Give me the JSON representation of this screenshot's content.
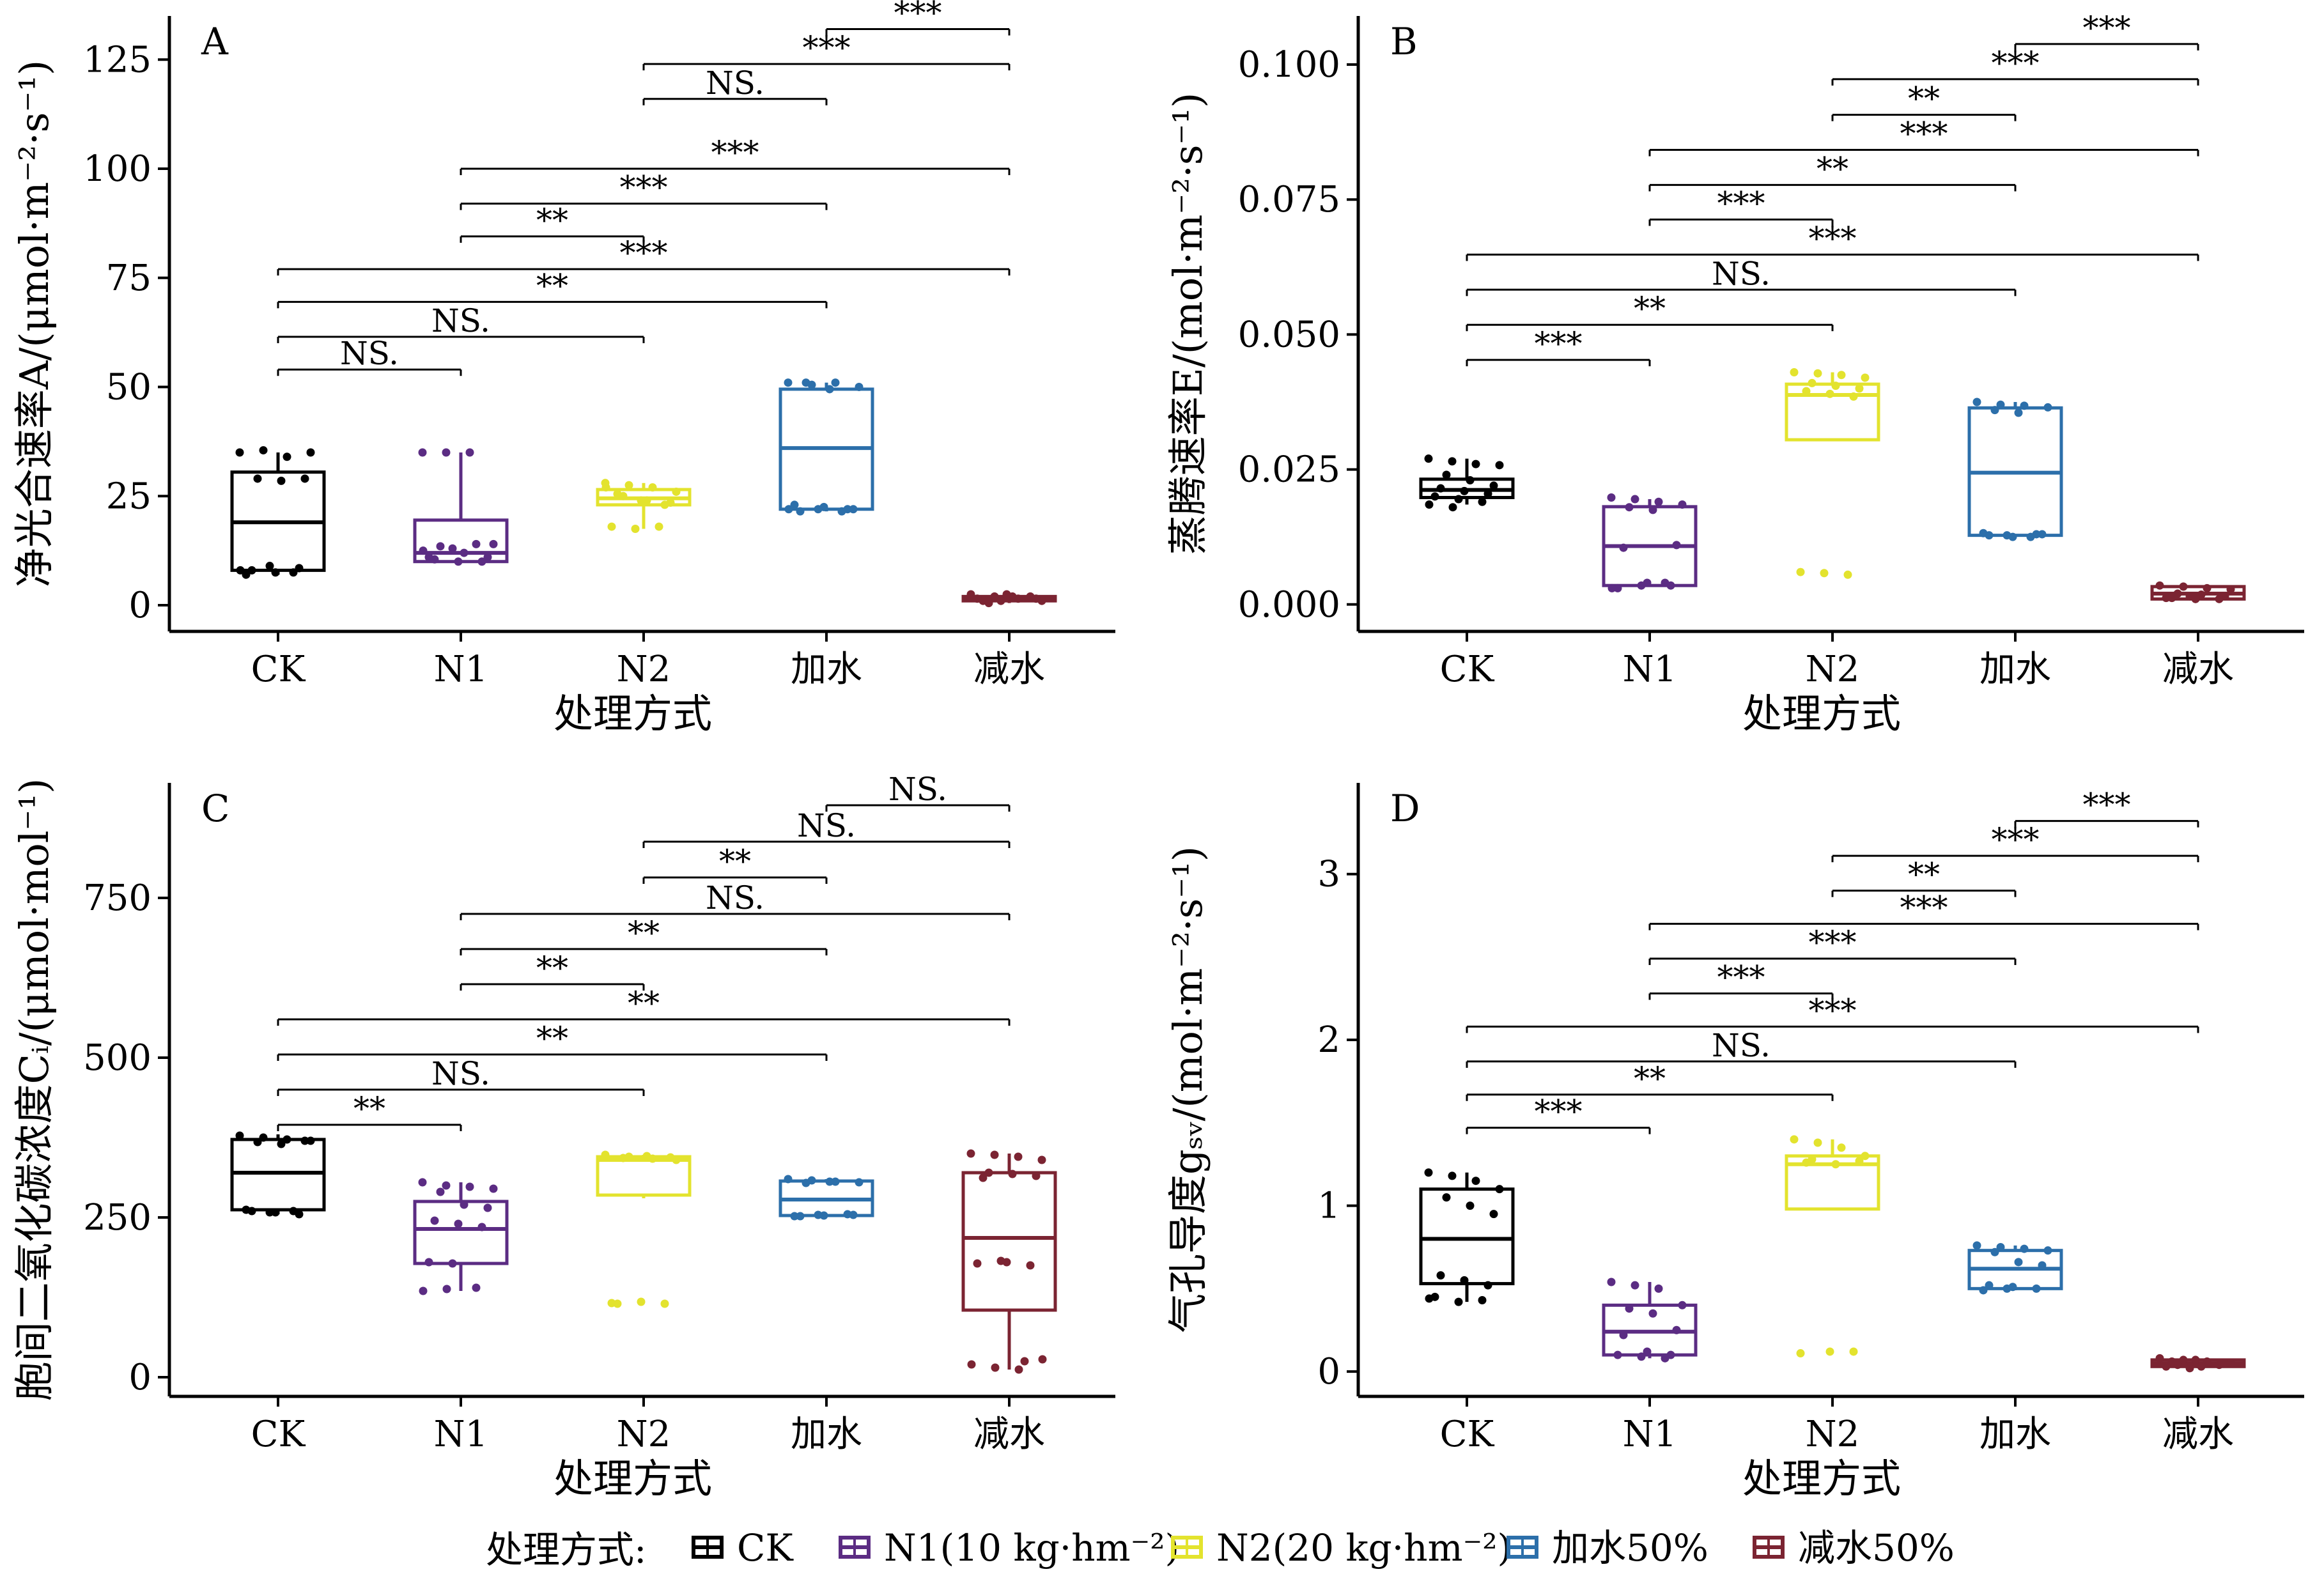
{
  "figure": {
    "legend": {
      "title": "处理方式:",
      "items": [
        {
          "label": "CK",
          "color": "#000000"
        },
        {
          "label": "N1(10 kg·hm⁻²)",
          "color": "#5B2C83"
        },
        {
          "label": "N2(20 kg·hm⁻²)",
          "color": "#E3E32E"
        },
        {
          "label": "加水50%",
          "color": "#2C6FAA"
        },
        {
          "label": "减水50%",
          "color": "#7B2432"
        }
      ]
    }
  },
  "chart_data": [
    {
      "type": "box",
      "panel": "A",
      "ylabel": "净光合速率A/(μmol·m⁻²·s⁻¹)",
      "xlabel": "处理方式",
      "categories": [
        "CK",
        "N1",
        "N2",
        "加水",
        "减水"
      ],
      "ylim": [
        -6,
        135
      ],
      "yticks": [
        0,
        25,
        50,
        75,
        100,
        125
      ],
      "boxes": [
        {
          "q1": 8,
          "median": 19,
          "q3": 30.5,
          "whislo": 7,
          "whishi": 35,
          "points": [
            35,
            35.5,
            34,
            35,
            29,
            28.5,
            29,
            8,
            7.5,
            8.5,
            7,
            9,
            7.5,
            8
          ]
        },
        {
          "q1": 10,
          "median": 12,
          "q3": 19.5,
          "whislo": 10,
          "whishi": 35,
          "points": [
            35,
            35,
            35,
            14,
            13.5,
            12,
            11,
            10.5,
            10,
            10,
            11,
            13,
            14,
            12.5
          ]
        },
        {
          "q1": 23,
          "median": 24.5,
          "q3": 26.5,
          "whislo": 17.5,
          "whishi": 28,
          "points": [
            28,
            27.5,
            27,
            26,
            25,
            24,
            23.5,
            25.5,
            24,
            23,
            18,
            17.5,
            18,
            27
          ]
        },
        {
          "q1": 22,
          "median": 36,
          "q3": 49.5,
          "whislo": 21.5,
          "whishi": 51,
          "points": [
            51,
            50.5,
            51,
            50,
            51,
            49.5,
            22,
            21.5,
            22.5,
            22,
            23,
            22,
            21.5,
            22
          ]
        },
        {
          "q1": 1,
          "median": 1.5,
          "q3": 2,
          "whislo": 0.5,
          "whishi": 2.5,
          "points": [
            2.5,
            2,
            1.5,
            1,
            0.5,
            2,
            1.5,
            1,
            2.5,
            2,
            1.5,
            1
          ]
        }
      ],
      "significance": [
        {
          "from": 3,
          "to": 4,
          "label": "***",
          "level": 132
        },
        {
          "from": 2,
          "to": 4,
          "label": "***",
          "level": 124
        },
        {
          "from": 2,
          "to": 3,
          "label": "NS.",
          "level": 116
        },
        {
          "from": 1,
          "to": 4,
          "label": "***",
          "level": 100
        },
        {
          "from": 1,
          "to": 3,
          "label": "***",
          "level": 92
        },
        {
          "from": 1,
          "to": 2,
          "label": "**",
          "level": 84.5
        },
        {
          "from": 0,
          "to": 4,
          "label": "***",
          "level": 77
        },
        {
          "from": 0,
          "to": 3,
          "label": "**",
          "level": 69.5
        },
        {
          "from": 0,
          "to": 2,
          "label": "NS.",
          "level": 61.5
        },
        {
          "from": 0,
          "to": 1,
          "label": "NS.",
          "level": 54
        }
      ]
    },
    {
      "type": "box",
      "panel": "B",
      "ylabel": "蒸腾速率E/(mol·m⁻²·s⁻¹)",
      "xlabel": "处理方式",
      "categories": [
        "CK",
        "N1",
        "N2",
        "加水",
        "减水"
      ],
      "ylim": [
        -0.005,
        0.109
      ],
      "yticks": [
        0,
        0.025,
        0.05,
        0.075,
        0.1
      ],
      "yticklabels": [
        "0.000",
        "0.025",
        "0.050",
        "0.075",
        "0.100"
      ],
      "boxes": [
        {
          "q1": 0.0198,
          "median": 0.0212,
          "q3": 0.0232,
          "whislo": 0.0185,
          "whishi": 0.027,
          "points": [
            0.027,
            0.0265,
            0.026,
            0.0258,
            0.024,
            0.023,
            0.022,
            0.0215,
            0.021,
            0.0205,
            0.02,
            0.0195,
            0.019,
            0.0185,
            0.018
          ]
        },
        {
          "q1": 0.0035,
          "median": 0.0108,
          "q3": 0.0181,
          "whislo": 0.0035,
          "whishi": 0.0195,
          "points": [
            0.0198,
            0.0195,
            0.019,
            0.0185,
            0.018,
            0.0175,
            0.011,
            0.0105,
            0.004,
            0.0035,
            0.003,
            0.0035,
            0.004,
            0.003
          ]
        },
        {
          "q1": 0.0305,
          "median": 0.0388,
          "q3": 0.0408,
          "whislo": 0.0305,
          "whishi": 0.043,
          "points": [
            0.043,
            0.0428,
            0.0425,
            0.042,
            0.041,
            0.0405,
            0.04,
            0.0395,
            0.039,
            0.0385,
            0.006,
            0.0058,
            0.0055
          ]
        },
        {
          "q1": 0.0128,
          "median": 0.0244,
          "q3": 0.0364,
          "whislo": 0.0128,
          "whishi": 0.0375,
          "points": [
            0.0375,
            0.037,
            0.0368,
            0.0365,
            0.036,
            0.0355,
            0.013,
            0.0128,
            0.0125,
            0.013,
            0.0132,
            0.0128,
            0.0125
          ]
        },
        {
          "q1": 0.001,
          "median": 0.002,
          "q3": 0.0033,
          "whislo": 0.001,
          "whishi": 0.0035,
          "points": [
            0.0035,
            0.0033,
            0.003,
            0.0028,
            0.002,
            0.0018,
            0.0015,
            0.0012,
            0.001,
            0.001,
            0.0012,
            0.0015
          ]
        }
      ],
      "significance": [
        {
          "from": 3,
          "to": 4,
          "label": "***",
          "level": 0.1038
        },
        {
          "from": 2,
          "to": 4,
          "label": "***",
          "level": 0.0973
        },
        {
          "from": 2,
          "to": 3,
          "label": "**",
          "level": 0.0907
        },
        {
          "from": 1,
          "to": 4,
          "label": "***",
          "level": 0.0842
        },
        {
          "from": 1,
          "to": 3,
          "label": "**",
          "level": 0.0777
        },
        {
          "from": 1,
          "to": 2,
          "label": "***",
          "level": 0.0713
        },
        {
          "from": 0,
          "to": 4,
          "label": "***",
          "level": 0.0648
        },
        {
          "from": 0,
          "to": 3,
          "label": "NS.",
          "level": 0.0583
        },
        {
          "from": 0,
          "to": 2,
          "label": "**",
          "level": 0.0518
        },
        {
          "from": 0,
          "to": 1,
          "label": "***",
          "level": 0.0453
        }
      ]
    },
    {
      "type": "box",
      "panel": "C",
      "ylabel": "胞间二氧化碳浓度Cᵢ/(μmol·mol⁻¹)",
      "xlabel": "处理方式",
      "categories": [
        "CK",
        "N1",
        "N2",
        "加水",
        "减水"
      ],
      "ylim": [
        -30,
        930
      ],
      "yticks": [
        0,
        250,
        500,
        750
      ],
      "boxes": [
        {
          "q1": 262,
          "median": 320,
          "q3": 372,
          "whislo": 255,
          "whishi": 380,
          "points": [
            378,
            375,
            372,
            370,
            368,
            365,
            370,
            260,
            258,
            255,
            262,
            258,
            260
          ]
        },
        {
          "q1": 178,
          "median": 232,
          "q3": 275,
          "whislo": 135,
          "whishi": 305,
          "points": [
            305,
            300,
            298,
            295,
            290,
            270,
            265,
            245,
            240,
            235,
            180,
            178,
            140,
            135,
            138
          ]
        },
        {
          "q1": 285,
          "median": 340,
          "q3": 345,
          "whislo": 280,
          "whishi": 348,
          "points": [
            348,
            345,
            342,
            340,
            343,
            346,
            344,
            115,
            118,
            115,
            116
          ]
        },
        {
          "q1": 253,
          "median": 278,
          "q3": 307,
          "whislo": 252,
          "whishi": 310,
          "points": [
            310,
            308,
            306,
            305,
            304,
            306,
            254,
            252,
            253,
            255,
            252,
            254
          ]
        },
        {
          "q1": 105,
          "median": 218,
          "q3": 320,
          "whislo": 12,
          "whishi": 350,
          "points": [
            350,
            348,
            345,
            340,
            320,
            318,
            315,
            312,
            180,
            175,
            178,
            182,
            25,
            20,
            15,
            12,
            28
          ]
        }
      ],
      "significance": [
        {
          "from": 3,
          "to": 4,
          "label": "NS.",
          "level": 895
        },
        {
          "from": 2,
          "to": 4,
          "label": "NS.",
          "level": 838
        },
        {
          "from": 2,
          "to": 3,
          "label": "**",
          "level": 782
        },
        {
          "from": 1,
          "to": 4,
          "label": "NS.",
          "level": 725
        },
        {
          "from": 1,
          "to": 3,
          "label": "**",
          "level": 670
        },
        {
          "from": 1,
          "to": 2,
          "label": "**",
          "level": 615
        },
        {
          "from": 0,
          "to": 4,
          "label": "**",
          "level": 560
        },
        {
          "from": 0,
          "to": 3,
          "label": "**",
          "level": 505
        },
        {
          "from": 0,
          "to": 2,
          "label": "NS.",
          "level": 450
        },
        {
          "from": 0,
          "to": 1,
          "label": "**",
          "level": 395
        }
      ]
    },
    {
      "type": "box",
      "panel": "D",
      "ylabel": "气孔导度gₛᵥ/(mol·m⁻²·s⁻¹)",
      "xlabel": "处理方式",
      "categories": [
        "CK",
        "N1",
        "N2",
        "加水",
        "减水"
      ],
      "ylim": [
        -0.15,
        3.55
      ],
      "yticks": [
        0,
        1,
        2,
        3
      ],
      "boxes": [
        {
          "q1": 0.53,
          "median": 0.8,
          "q3": 1.1,
          "whislo": 0.42,
          "whishi": 1.2,
          "points": [
            1.2,
            1.18,
            1.15,
            1.1,
            1.05,
            1.0,
            0.95,
            0.58,
            0.55,
            0.52,
            0.45,
            0.42,
            0.43,
            0.44
          ]
        },
        {
          "q1": 0.1,
          "median": 0.24,
          "q3": 0.4,
          "whislo": 0.08,
          "whishi": 0.54,
          "points": [
            0.54,
            0.52,
            0.5,
            0.4,
            0.38,
            0.35,
            0.25,
            0.22,
            0.12,
            0.1,
            0.1,
            0.09,
            0.08
          ]
        },
        {
          "q1": 0.98,
          "median": 1.25,
          "q3": 1.3,
          "whislo": 0.98,
          "whishi": 1.4,
          "points": [
            1.4,
            1.38,
            1.35,
            1.3,
            1.28,
            1.25,
            1.27,
            1.26,
            0.12,
            0.12,
            0.11
          ]
        },
        {
          "q1": 0.5,
          "median": 0.62,
          "q3": 0.73,
          "whislo": 0.49,
          "whishi": 0.76,
          "points": [
            0.76,
            0.75,
            0.74,
            0.73,
            0.72,
            0.66,
            0.64,
            0.52,
            0.51,
            0.5,
            0.49,
            0.5
          ]
        },
        {
          "q1": 0.03,
          "median": 0.05,
          "q3": 0.07,
          "whislo": 0.02,
          "whishi": 0.08,
          "points": [
            0.08,
            0.07,
            0.06,
            0.05,
            0.04,
            0.03,
            0.05,
            0.06,
            0.07,
            0.04,
            0.03,
            0.02
          ]
        }
      ],
      "significance": [
        {
          "from": 3,
          "to": 4,
          "label": "***",
          "level": 3.32
        },
        {
          "from": 2,
          "to": 4,
          "label": "***",
          "level": 3.11
        },
        {
          "from": 2,
          "to": 3,
          "label": "**",
          "level": 2.9
        },
        {
          "from": 1,
          "to": 4,
          "label": "***",
          "level": 2.7
        },
        {
          "from": 1,
          "to": 3,
          "label": "***",
          "level": 2.49
        },
        {
          "from": 1,
          "to": 2,
          "label": "***",
          "level": 2.28
        },
        {
          "from": 0,
          "to": 4,
          "label": "***",
          "level": 2.08
        },
        {
          "from": 0,
          "to": 3,
          "label": "NS.",
          "level": 1.87
        },
        {
          "from": 0,
          "to": 2,
          "label": "**",
          "level": 1.67
        },
        {
          "from": 0,
          "to": 1,
          "label": "***",
          "level": 1.47
        }
      ]
    }
  ]
}
